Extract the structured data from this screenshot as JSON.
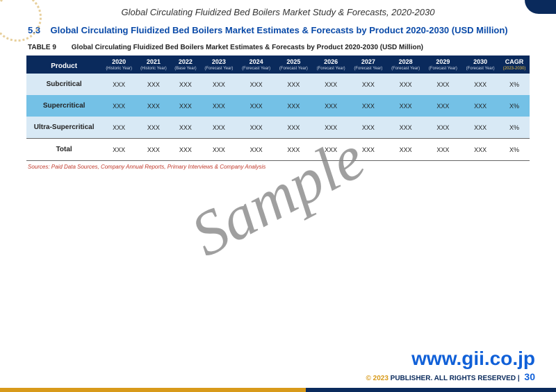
{
  "header": {
    "running_title": "Global Circulating Fluidized Bed Boilers Market Study & Forecasts, 2020-2030"
  },
  "section": {
    "number": "5.3",
    "title": "Global Circulating Fluidized Bed Boilers Market Estimates & Forecasts by Product 2020-2030 (USD Million)"
  },
  "table": {
    "label": "TABLE 9",
    "caption": "Global Circulating Fluidized Bed Boilers Market Estimates & Forecasts by Product 2020-2030 (USD Million)",
    "first_col": "Product",
    "years": [
      "2020",
      "2021",
      "2022",
      "2023",
      "2024",
      "2025",
      "2026",
      "2027",
      "2028",
      "2029",
      "2030"
    ],
    "year_subs": [
      "(Historic Year)",
      "(Historic Year)",
      "(Base Year)",
      "(Forecast Year)",
      "(Forecast Year)",
      "(Forecast Year)",
      "(Forecast Year)",
      "(Forecast Year)",
      "(Forecast Year)",
      "(Forecast Year)",
      "(Forecast Year)"
    ],
    "cagr_head": "CAGR",
    "cagr_sub": "(2023-2030)",
    "rows": [
      {
        "label": "Subcritical",
        "cls": "light",
        "cells": [
          "XXX",
          "XXX",
          "XXX",
          "XXX",
          "XXX",
          "XXX",
          "XXX",
          "XXX",
          "XXX",
          "XXX",
          "XXX"
        ],
        "cagr": "X%"
      },
      {
        "label": "Supercritical",
        "cls": "dark",
        "cells": [
          "XXX",
          "XXX",
          "XXX",
          "XXX",
          "XXX",
          "XXX",
          "XXX",
          "XXX",
          "XXX",
          "XXX",
          "XXX"
        ],
        "cagr": "X%"
      },
      {
        "label": "Ultra-Supercritical",
        "cls": "light",
        "cells": [
          "XXX",
          "XXX",
          "XXX",
          "XXX",
          "XXX",
          "XXX",
          "XXX",
          "XXX",
          "XXX",
          "XXX",
          "XXX"
        ],
        "cagr": "X%"
      },
      {
        "label": "Total",
        "cls": "total",
        "cells": [
          "XXX",
          "XXX",
          "XXX",
          "XXX",
          "XXX",
          "XXX",
          "XXX",
          "XXX",
          "XXX",
          "XXX",
          "XXX"
        ],
        "cagr": "X%"
      }
    ],
    "sources": "Sources: Paid Data Sources, Company Annual Reports, Primary Interviews & Company Analysis"
  },
  "watermark": "Sample",
  "footer": {
    "url": "www.gii.co.jp",
    "copy_symbol": "© 2023",
    "copy_text": " PUBLISHER. ALL RIGHTS RESERVED | ",
    "page": "30"
  },
  "colors": {
    "header_bg": "#0a2a5c",
    "row_light": "#d8e9f5",
    "row_dark": "#74c1e6",
    "heading": "#0a4aa8",
    "accent_gold": "#d89a1a",
    "link_blue": "#1060d8",
    "source_red": "#c0392b"
  }
}
